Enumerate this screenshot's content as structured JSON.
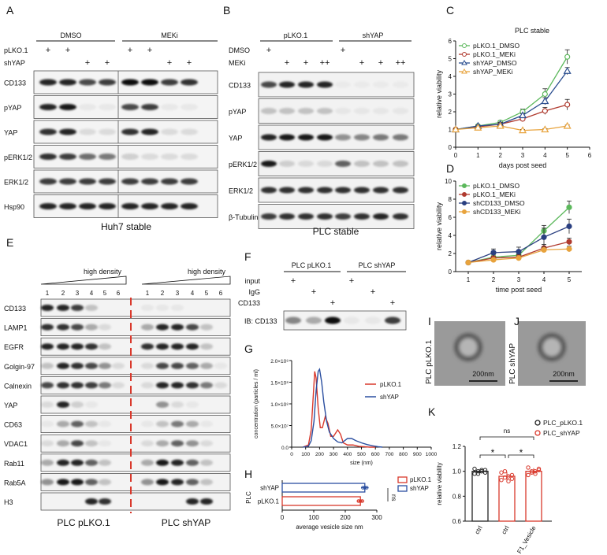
{
  "figure": {
    "panel_letters": [
      "A",
      "B",
      "C",
      "D",
      "E",
      "F",
      "G",
      "H",
      "I",
      "J",
      "K"
    ],
    "blot_A": {
      "header_groups": [
        "DMSO",
        "MEKi"
      ],
      "row_labels": [
        "pLKO.1",
        "shYAP"
      ],
      "marks": {
        "pLKO.1": [
          "+",
          "+",
          "",
          "",
          "+",
          "+",
          "",
          ""
        ],
        "shYAP": [
          "",
          "",
          "+",
          "+",
          "",
          "",
          "+",
          "+"
        ]
      },
      "bands": [
        "CD133",
        "pYAP",
        "YAP",
        "pERK1/2",
        "ERK1/2",
        "Hsp90"
      ],
      "caption": "Huh7 stable"
    },
    "blot_B": {
      "header_groups": [
        "pLKO.1",
        "shYAP"
      ],
      "row_labels": [
        "DMSO",
        "MEKi"
      ],
      "marks": {
        "DMSO": [
          "+",
          "",
          "",
          "",
          "+",
          "",
          "",
          ""
        ],
        "MEKi": [
          "",
          "+",
          "+",
          "++",
          "",
          "+",
          "+",
          "++"
        ]
      },
      "bands": [
        "CD133",
        "pYAP",
        "YAP",
        "pERK1/2",
        "ERK1/2",
        "β-Tubulin"
      ],
      "caption": "PLC stable"
    },
    "blot_E": {
      "density_label": "high density",
      "fractions": [
        "1",
        "2",
        "3",
        "4",
        "5",
        "6"
      ],
      "bands": [
        "CD133",
        "LAMP1",
        "EGFR",
        "Golgin-97",
        "Calnexin",
        "YAP",
        "CD63",
        "VDAC1",
        "Rab11",
        "Rab5A",
        "H3"
      ],
      "captions": [
        "PLC pLKO.1",
        "PLC shYAP"
      ]
    },
    "blot_F": {
      "group_labels": [
        "PLC pLKO.1",
        "PLC shYAP"
      ],
      "row_labels": [
        "input",
        "IgG",
        "CD133"
      ],
      "marks": {
        "input": [
          "+",
          "",
          "",
          "+",
          "",
          ""
        ],
        "IgG": [
          "",
          "+",
          "",
          "",
          "+",
          ""
        ],
        "CD133": [
          "",
          "",
          "+",
          "",
          "",
          "+"
        ]
      },
      "band_label": "IB: CD133"
    },
    "em_images": [
      {
        "letter": "I",
        "label": "PLC pLKO.1",
        "scale": "200nm"
      },
      {
        "letter": "J",
        "label": "PLC shYAP",
        "scale": "200nm"
      }
    ]
  },
  "chart_data": [
    {
      "id": "C",
      "type": "line",
      "title": "PLC stable",
      "xlabel": "days post seed",
      "ylabel": "relative viability",
      "x": [
        0,
        1,
        2,
        3,
        4,
        5
      ],
      "xlim": [
        0,
        6
      ],
      "ylim": [
        0,
        6
      ],
      "xticks": [
        "0",
        "1",
        "2",
        "3",
        "4",
        "5",
        "6"
      ],
      "yticks": [
        "0",
        "1",
        "2",
        "3",
        "4",
        "5",
        "6"
      ],
      "series": [
        {
          "name": "pLKO.1_DMSO",
          "color": "#5cb85c",
          "marker": "circle-open",
          "x": [
            0,
            1,
            2,
            3,
            4,
            5
          ],
          "values": [
            1.0,
            1.2,
            1.4,
            2.0,
            3.0,
            5.1
          ],
          "err": [
            0.05,
            0.05,
            0.1,
            0.15,
            0.3,
            0.4
          ]
        },
        {
          "name": "pLKO.1_MEKi",
          "color": "#b03a2e",
          "marker": "circle-open",
          "x": [
            0,
            1,
            2,
            3,
            4,
            5
          ],
          "values": [
            1.0,
            1.15,
            1.3,
            1.6,
            2.05,
            2.4
          ],
          "err": [
            0.05,
            0.05,
            0.1,
            0.1,
            0.2,
            0.3
          ]
        },
        {
          "name": "shYAP_DMSO",
          "color": "#2a4d8f",
          "marker": "triangle-open",
          "x": [
            0,
            1,
            2,
            3,
            4,
            5
          ],
          "values": [
            1.0,
            1.2,
            1.3,
            1.8,
            2.6,
            4.3
          ],
          "err": [
            0.05,
            0.05,
            0.1,
            0.1,
            0.2,
            0.2
          ]
        },
        {
          "name": "shYAP_MEKi",
          "color": "#e8a33d",
          "marker": "triangle-open",
          "x": [
            0,
            1,
            2,
            3,
            4,
            5
          ],
          "values": [
            1.0,
            1.1,
            1.2,
            0.95,
            1.0,
            1.2
          ],
          "err": [
            0.05,
            0.05,
            0.05,
            0.05,
            0.05,
            0.05
          ]
        }
      ]
    },
    {
      "id": "D",
      "type": "line",
      "title": "",
      "xlabel": "time post seed",
      "ylabel": "relative viability",
      "x": [
        1,
        2,
        3,
        4,
        5
      ],
      "xlim": [
        0.5,
        5.5
      ],
      "ylim": [
        0,
        10
      ],
      "xticks": [
        "1",
        "2",
        "3",
        "4",
        "5"
      ],
      "yticks": [
        "0",
        "2",
        "4",
        "6",
        "8",
        "10"
      ],
      "series": [
        {
          "name": "pLKO.1_DMSO",
          "color": "#5cb85c",
          "marker": "circle",
          "x": [
            1,
            2,
            3,
            4,
            5
          ],
          "values": [
            1.0,
            1.6,
            1.8,
            4.5,
            7.1
          ],
          "err": [
            0.05,
            0.3,
            0.4,
            0.6,
            0.7
          ]
        },
        {
          "name": "pLKO.1_MEKi",
          "color": "#b03a2e",
          "marker": "circle",
          "x": [
            1,
            2,
            3,
            4,
            5
          ],
          "values": [
            1.0,
            1.5,
            1.6,
            2.6,
            3.3
          ],
          "err": [
            0.05,
            0.2,
            0.3,
            0.4,
            0.4
          ]
        },
        {
          "name": "shCD133_DMSO",
          "color": "#2a3f80",
          "marker": "circle",
          "x": [
            1,
            2,
            3,
            4,
            5
          ],
          "values": [
            1.0,
            2.1,
            2.2,
            3.8,
            5.0
          ],
          "err": [
            0.05,
            0.4,
            0.5,
            1.0,
            0.8
          ]
        },
        {
          "name": "shCD133_MEKi",
          "color": "#e8a33d",
          "marker": "circle",
          "x": [
            1,
            2,
            3,
            4,
            5
          ],
          "values": [
            1.0,
            1.3,
            1.5,
            2.4,
            2.5
          ],
          "err": [
            0.05,
            0.2,
            0.2,
            0.3,
            0.3
          ]
        }
      ]
    },
    {
      "id": "G",
      "type": "line",
      "xlabel": "size (nm)",
      "ylabel": "concentration (particles / ml)",
      "xlim": [
        0,
        1000
      ],
      "ylim": [
        0,
        2.0
      ],
      "xticks": [
        "0",
        "100",
        "200",
        "300",
        "400",
        "500",
        "600",
        "700",
        "800",
        "900",
        "1000"
      ],
      "yticks": [
        "0.0",
        "5.0×10⁷",
        "1.0×10⁸",
        "1.5×10⁸",
        "2.0×10⁸"
      ],
      "series": [
        {
          "name": "pLKO.1",
          "color": "#d9382b",
          "x": [
            80,
            120,
            140,
            155,
            165,
            175,
            190,
            205,
            220,
            240,
            260,
            280,
            300,
            330,
            350,
            370,
            400,
            440,
            480,
            520,
            560,
            600
          ],
          "values": [
            0,
            0.05,
            0.4,
            1.2,
            1.75,
            1.6,
            0.9,
            0.45,
            0.45,
            0.7,
            0.55,
            0.25,
            0.25,
            0.4,
            0.3,
            0.1,
            0.05,
            0.05,
            0.02,
            0.01,
            0,
            0
          ]
        },
        {
          "name": "shYAP",
          "color": "#2b4fa0",
          "x": [
            80,
            120,
            140,
            160,
            175,
            190,
            200,
            215,
            230,
            250,
            270,
            300,
            330,
            360,
            400,
            430,
            460,
            500,
            540,
            580,
            620,
            650
          ],
          "values": [
            0,
            0.02,
            0.15,
            0.6,
            1.3,
            1.75,
            1.8,
            1.5,
            1.05,
            0.6,
            0.35,
            0.2,
            0.12,
            0.1,
            0.2,
            0.2,
            0.15,
            0.1,
            0.06,
            0.03,
            0.01,
            0
          ]
        }
      ]
    },
    {
      "id": "H",
      "type": "bar",
      "orientation": "horizontal",
      "group_label": "PLC",
      "categories": [
        "shYAP",
        "pLKO.1"
      ],
      "values": [
        262,
        248
      ],
      "err": [
        12,
        10
      ],
      "colors": [
        "#2b4fa0",
        "#d9382b"
      ],
      "legend": [
        "pLKO.1",
        "shYAP"
      ],
      "xlabel": "average vesicle size nm",
      "xlim": [
        0,
        300
      ],
      "xticks": [
        "0",
        "100",
        "200",
        "300"
      ],
      "annotation": "ns"
    },
    {
      "id": "K",
      "type": "bar",
      "ylabel": "relative viability",
      "ylim": [
        0.6,
        1.2
      ],
      "yticks": [
        "0.6",
        "0.8",
        "1.0",
        "1.2"
      ],
      "categories": [
        "ctrl",
        "ctrl",
        "F1_Vesicle"
      ],
      "colors": [
        "#222222",
        "#d9382b",
        "#d9382b"
      ],
      "values": [
        1.0,
        0.96,
        1.0
      ],
      "err": [
        0.015,
        0.035,
        0.025
      ],
      "points": [
        [
          0.98,
          1.0,
          1.01,
          0.99,
          1.02,
          0.98,
          1.0,
          1.01
        ],
        [
          0.93,
          0.95,
          0.96,
          0.97,
          0.99,
          1.0,
          0.92,
          0.94
        ],
        [
          0.97,
          0.99,
          1.0,
          1.01,
          1.03,
          1.0,
          0.98,
          1.02
        ]
      ],
      "legend": [
        "PLC_pLKO.1",
        "PLC_shYAP"
      ],
      "annotations": [
        "ns",
        "*",
        "*"
      ]
    }
  ]
}
